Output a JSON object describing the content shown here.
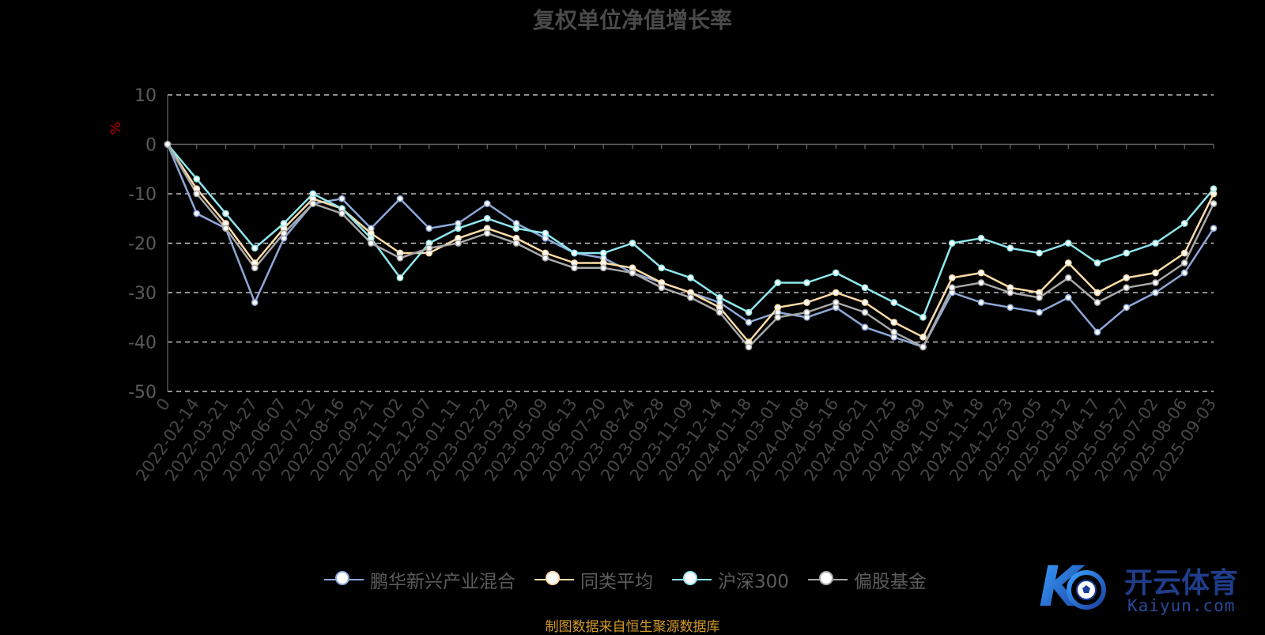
{
  "title": "复权单位净值增长率",
  "source": "制图数据来自恒生聚源数据库",
  "watermark": {
    "text": "开云体育",
    "sub": "Kaiyun.com",
    "mark": "K"
  },
  "chart_data": {
    "type": "line",
    "ylabel": "%",
    "ylim": [
      -50,
      10
    ],
    "yticks": [
      10,
      0,
      -10,
      -20,
      -30,
      -40,
      -50
    ],
    "grid": true,
    "legend_position": "bottom",
    "x_labels": [
      "0",
      "2022-02-14",
      "2022-03-21",
      "2022-04-27",
      "2022-06-07",
      "2022-07-12",
      "2022-08-16",
      "2022-09-21",
      "2022-11-02",
      "2022-12-07",
      "2023-01-11",
      "2023-02-22",
      "2023-03-29",
      "2023-05-09",
      "2023-06-13",
      "2023-07-20",
      "2023-08-24",
      "2023-09-28",
      "2023-11-09",
      "2023-12-14",
      "2024-01-18",
      "2024-03-01",
      "2024-04-08",
      "2024-05-16",
      "2024-06-21",
      "2024-07-25",
      "2024-08-29",
      "2024-10-14",
      "2024-11-18",
      "2024-12-23",
      "2025-02-05",
      "2025-03-12",
      "2025-04-17",
      "2025-05-27",
      "2025-07-02",
      "2025-08-06",
      "2025-09-03"
    ],
    "series": [
      {
        "name": "鹏华新兴产业混合",
        "color": "#8ea8d8",
        "values": [
          0,
          -14,
          -17,
          -32,
          -19,
          -12,
          -11,
          -17,
          -11,
          -17,
          -16,
          -12,
          -16,
          -19,
          -22,
          -23,
          -26,
          -28,
          -30,
          -32,
          -36,
          -34,
          -35,
          -33,
          -37,
          -39,
          -41,
          -30,
          -32,
          -33,
          -34,
          -31,
          -38,
          -33,
          -30,
          -26,
          -17
        ]
      },
      {
        "name": "同类平均",
        "color": "#ffdca8",
        "values": [
          0,
          -9,
          -16,
          -24,
          -17,
          -11,
          -13,
          -18,
          -22,
          -22,
          -19,
          -17,
          -19,
          -22,
          -24,
          -24,
          -25,
          -28,
          -30,
          -33,
          -40,
          -33,
          -32,
          -30,
          -32,
          -36,
          -39,
          -27,
          -26,
          -29,
          -30,
          -24,
          -30,
          -27,
          -26,
          -22,
          -10
        ]
      },
      {
        "name": "沪深300",
        "color": "#8ee8ee",
        "values": [
          0,
          -7,
          -14,
          -21,
          -16,
          -10,
          -13,
          -19,
          -27,
          -20,
          -17,
          -15,
          -17,
          -18,
          -22,
          -22,
          -20,
          -25,
          -27,
          -31,
          -34,
          -28,
          -28,
          -26,
          -29,
          -32,
          -35,
          -20,
          -19,
          -21,
          -22,
          -20,
          -24,
          -22,
          -20,
          -16,
          -9
        ]
      },
      {
        "name": "偏股基金",
        "color": "#a8a8a8",
        "values": [
          0,
          -10,
          -17,
          -25,
          -18,
          -12,
          -14,
          -20,
          -23,
          -21,
          -20,
          -18,
          -20,
          -23,
          -25,
          -25,
          -26,
          -29,
          -31,
          -34,
          -41,
          -35,
          -34,
          -32,
          -34,
          -38,
          -41,
          -29,
          -28,
          -30,
          -31,
          -27,
          -32,
          -29,
          -28,
          -24,
          -12
        ]
      }
    ]
  }
}
